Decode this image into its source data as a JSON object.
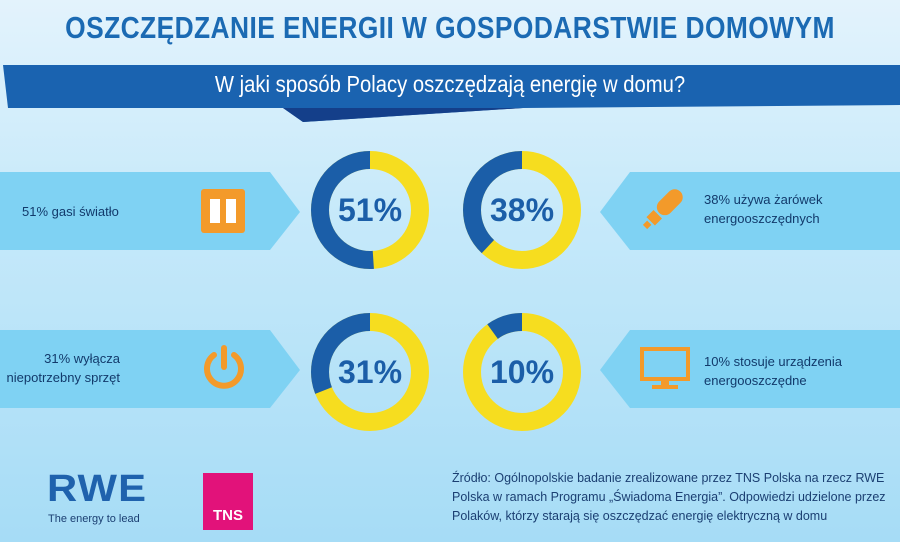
{
  "title": "OSZCZĘDZANIE ENERGII W GOSPODARSTWIE DOMOWYM",
  "subtitle": "W jaki sposób Polacy oszczędzają energię w domu?",
  "colors": {
    "blue": "#1b5ea8",
    "yellow": "#f6dd1f",
    "panel": "#7fd2f3",
    "icon": "#f39a2a"
  },
  "items": [
    {
      "label": "51% gasi światło",
      "percent": 51,
      "pct_label": "51%",
      "icon": "light-switch-icon"
    },
    {
      "label": "38% używa żarówek energooszczędnych",
      "line1": "38% używa żarówek",
      "line2": "energooszczędnych",
      "percent": 38,
      "pct_label": "38%",
      "icon": "bulb-icon"
    },
    {
      "label": "31% wyłącza niepotrzebny sprzęt",
      "line1": "31% wyłącza",
      "line2": "niepotrzebny sprzęt",
      "percent": 31,
      "pct_label": "31%",
      "icon": "power-icon"
    },
    {
      "label": "10% stosuje urządzenia energooszczędne",
      "line1": "10% stosuje urządzenia",
      "line2": "energooszczędne",
      "percent": 10,
      "pct_label": "10%",
      "icon": "monitor-icon"
    }
  ],
  "footer": {
    "logo_rwe": "RWE",
    "rwe_tagline": "The energy to lead",
    "logo_tns": "TNS",
    "source_lines": [
      "Źródło: Ogólnopolskie badanie zrealizowane przez TNS Polska na rzecz RWE",
      "Polska w ramach Programu „Świadoma Energia”. Odpowiedzi udzielone przez",
      "Polaków, którzy starają się oszczędzać energię elektryczną w domu"
    ]
  }
}
